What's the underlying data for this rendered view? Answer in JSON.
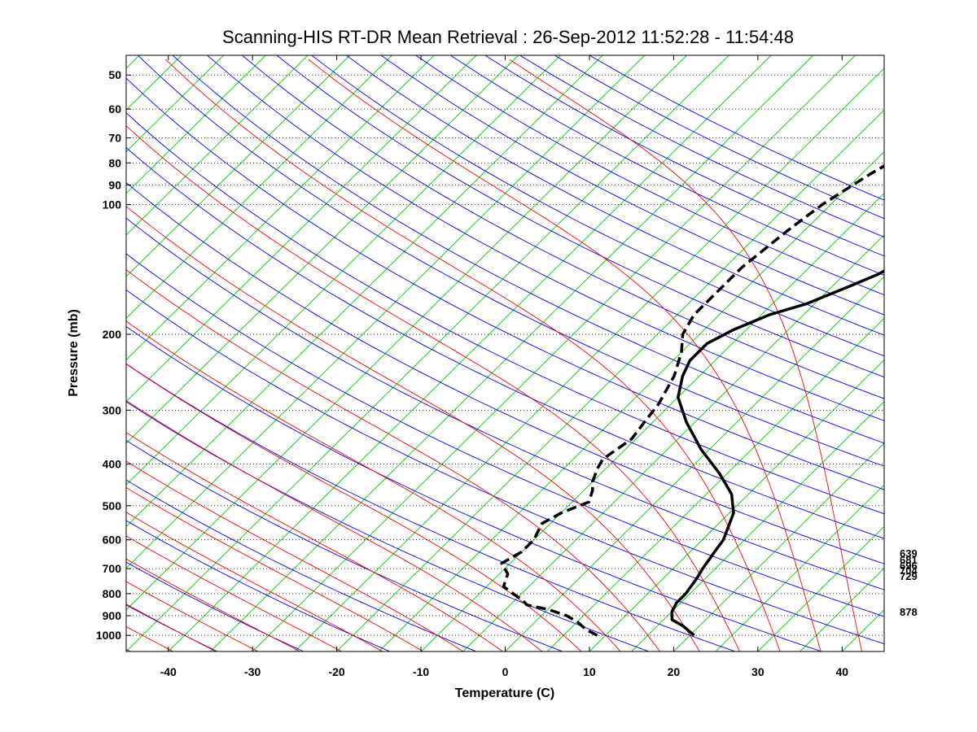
{
  "chart_data": {
    "type": "line",
    "subtype": "skew-T log-P diagram",
    "title": "Scanning-HIS RT-DR Mean Retrieval : 26-Sep-2012 11:52:28 - 11:54:48",
    "xlabel": "Temperature (C)",
    "ylabel": "Pressure (mb)",
    "xlim": [
      -45,
      45
    ],
    "ylim": [
      1090,
      45
    ],
    "x_ticks": [
      -40,
      -30,
      -20,
      -10,
      0,
      10,
      20,
      30,
      40
    ],
    "y_ticks": [
      50,
      60,
      70,
      80,
      90,
      100,
      200,
      300,
      400,
      500,
      600,
      700,
      800,
      900,
      1000
    ],
    "y_gridlines": "dotted",
    "right_labels": [
      "639",
      "681",
      "696",
      "704",
      "729",
      "878"
    ],
    "colors": {
      "isotherm": "#00cc00",
      "dry_adiabat": "#0000ff",
      "moist_adiabat": "#ff0000",
      "profile": "#000000"
    },
    "series": [
      {
        "name": "Temperature",
        "style": "solid",
        "points": [
          [
            20.5,
            1000
          ],
          [
            18,
            950
          ],
          [
            16,
            920
          ],
          [
            15,
            880
          ],
          [
            14.5,
            840
          ],
          [
            14.5,
            800
          ],
          [
            14,
            740
          ],
          [
            13.5,
            700
          ],
          [
            13,
            650
          ],
          [
            12.5,
            600
          ],
          [
            10.5,
            520
          ],
          [
            8,
            470
          ],
          [
            4,
            420
          ],
          [
            -1,
            370
          ],
          [
            -6,
            320
          ],
          [
            -10,
            280
          ],
          [
            -12,
            250
          ],
          [
            -13,
            230
          ],
          [
            -13,
            210
          ],
          [
            -11.5,
            195
          ],
          [
            -9,
            180
          ],
          [
            -6,
            170
          ],
          [
            -3,
            155
          ],
          [
            -1,
            145
          ],
          [
            1,
            130
          ],
          [
            4,
            115
          ],
          [
            7,
            100
          ],
          [
            10,
            85
          ],
          [
            12,
            78
          ],
          [
            14,
            75
          ],
          [
            17,
            70
          ],
          [
            21,
            63
          ],
          [
            25,
            58
          ],
          [
            32,
            53
          ],
          [
            38,
            48
          ]
        ]
      },
      {
        "name": "Dewpoint",
        "style": "dashed",
        "points": [
          [
            9,
            1000
          ],
          [
            7,
            970
          ],
          [
            5,
            930
          ],
          [
            3,
            900
          ],
          [
            0,
            870
          ],
          [
            -3,
            850
          ],
          [
            -4,
            830
          ],
          [
            -6,
            800
          ],
          [
            -8,
            770
          ],
          [
            -9,
            720
          ],
          [
            -11,
            680
          ],
          [
            -10,
            640
          ],
          [
            -10,
            600
          ],
          [
            -11,
            550
          ],
          [
            -10,
            520
          ],
          [
            -8,
            490
          ],
          [
            -9,
            460
          ],
          [
            -10,
            440
          ],
          [
            -11,
            410
          ],
          [
            -11.5,
            390
          ],
          [
            -10.5,
            350
          ],
          [
            -11,
            320
          ],
          [
            -11.5,
            290
          ],
          [
            -13,
            250
          ],
          [
            -15,
            220
          ],
          [
            -17,
            200
          ],
          [
            -18,
            180
          ],
          [
            -18,
            160
          ],
          [
            -18,
            140
          ],
          [
            -17,
            115
          ],
          [
            -16,
            100
          ],
          [
            -14,
            85
          ],
          [
            -12,
            75
          ],
          [
            -9,
            65
          ],
          [
            -6,
            58
          ],
          [
            -3,
            53
          ],
          [
            1,
            47
          ]
        ]
      }
    ]
  }
}
